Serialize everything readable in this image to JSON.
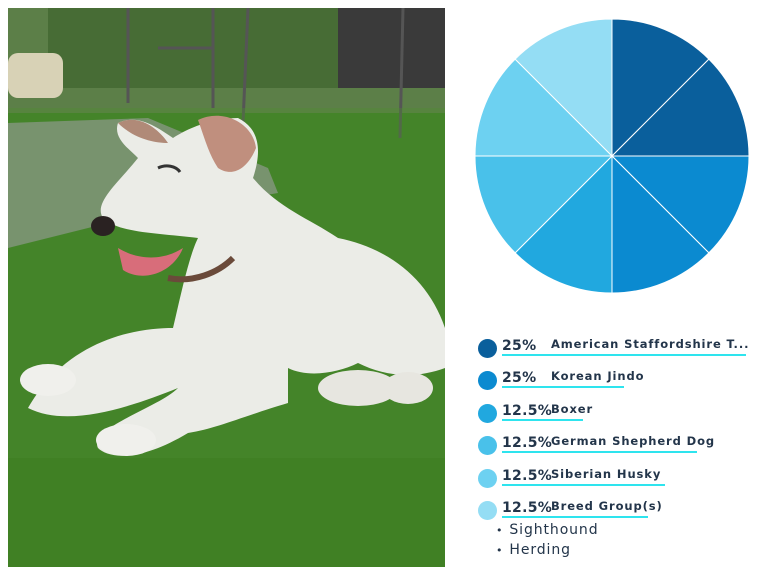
{
  "photo": {
    "alt_subject": "white puppy lying on grass"
  },
  "chart_data": {
    "type": "pie",
    "title": "",
    "slices": [
      {
        "label": "American Staffordshire T...",
        "value": 25,
        "color": "#0a5f9c"
      },
      {
        "label": "Korean Jindo",
        "value": 25,
        "color": "#0b8ad0"
      },
      {
        "label": "Boxer",
        "value": 12.5,
        "color": "#21a8df"
      },
      {
        "label": "German Shepherd Dog",
        "value": 12.5,
        "color": "#49c1ea"
      },
      {
        "label": "Siberian Husky",
        "value": 12.5,
        "color": "#6dd1f1"
      },
      {
        "label": "Breed Group(s)",
        "value": 12.5,
        "color": "#94ddf4"
      }
    ]
  },
  "legend": [
    {
      "pct": "25%",
      "name": "American Staffordshire T...",
      "color": "#0a5f9c",
      "underline": 1
    },
    {
      "pct": "25%",
      "name": "Korean Jindo",
      "color": "#0b8ad0",
      "underline": 0.5
    },
    {
      "pct": "12.5%",
      "name": "Boxer",
      "color": "#21a8df",
      "underline": 0.33
    },
    {
      "pct": "12.5%",
      "name": "German Shepherd Dog",
      "color": "#49c1ea",
      "underline": 0.8
    },
    {
      "pct": "12.5%",
      "name": "Siberian Husky",
      "color": "#6dd1f1",
      "underline": 0.67
    },
    {
      "pct": "12.5%",
      "name": "Breed Group(s)",
      "color": "#94ddf4",
      "underline": 0.6
    }
  ],
  "breed_groups": [
    "Sighthound",
    "Herding"
  ]
}
